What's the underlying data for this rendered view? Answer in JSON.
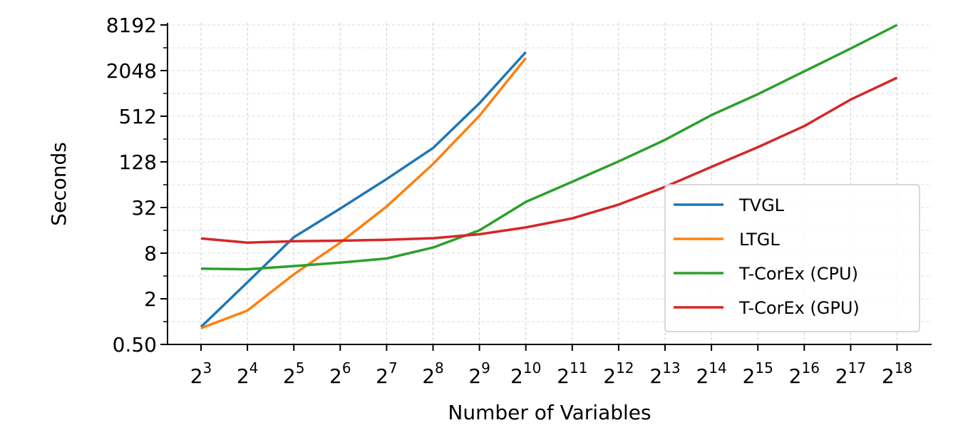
{
  "chart_data": {
    "type": "line",
    "xlabel": "Number of Variables",
    "ylabel": "Seconds",
    "x_base": "2",
    "x_exponents": [
      3,
      4,
      5,
      6,
      7,
      8,
      9,
      10,
      11,
      12,
      13,
      14,
      15,
      16,
      17,
      18
    ],
    "x_scale": "log2",
    "y_scale": "log2",
    "ylim": [
      0.5,
      16384
    ],
    "y_ticks": [
      "0.50",
      "2",
      "8",
      "32",
      "128",
      "512",
      "2048",
      "8192"
    ],
    "y_tick_values": [
      0.5,
      2,
      8,
      32,
      128,
      512,
      2048,
      8192
    ],
    "grid": true,
    "legend_position": "right",
    "series": [
      {
        "name": "TVGL",
        "color": "#1f77b4",
        "x": [
          3,
          4,
          5,
          6,
          7,
          8,
          9,
          10
        ],
        "values": [
          0.85,
          3.3,
          13,
          31,
          76,
          195,
          760,
          3600
        ]
      },
      {
        "name": "LTGL",
        "color": "#ff7f0e",
        "x": [
          3,
          4,
          5,
          6,
          7,
          8,
          9,
          10
        ],
        "values": [
          0.82,
          1.4,
          4.2,
          11,
          33,
          120,
          520,
          3000
        ]
      },
      {
        "name": "T-CorEx (CPU)",
        "color": "#2ca02c",
        "x": [
          3,
          4,
          5,
          6,
          7,
          8,
          9,
          10,
          11,
          12,
          13,
          14,
          15,
          16,
          17,
          18
        ],
        "values": [
          5.0,
          4.9,
          5.4,
          6.0,
          6.8,
          9.5,
          16,
          38,
          70,
          130,
          250,
          530,
          1000,
          2000,
          4000,
          8192
        ]
      },
      {
        "name": "T-CorEx (GPU)",
        "color": "#d62728",
        "x": [
          3,
          4,
          5,
          6,
          7,
          8,
          9,
          10,
          11,
          12,
          13,
          14,
          15,
          16,
          17,
          18
        ],
        "values": [
          12.5,
          11,
          11.5,
          11.7,
          12,
          12.6,
          14.2,
          17.5,
          23,
          35,
          60,
          110,
          200,
          380,
          850,
          1650
        ]
      }
    ]
  }
}
